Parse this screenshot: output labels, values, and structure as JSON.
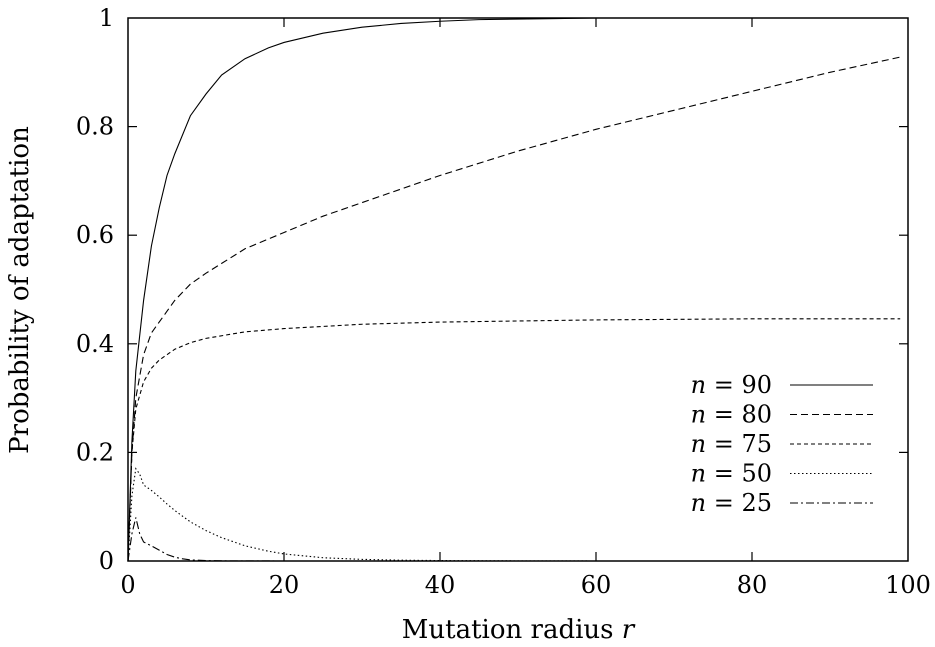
{
  "chart_data": {
    "type": "line",
    "xlabel": "Mutation radius r",
    "ylabel": "Probability of adaptation",
    "xlim": [
      0,
      100
    ],
    "ylim": [
      0,
      1
    ],
    "x_ticks": [
      "0",
      "20",
      "40",
      "60",
      "80",
      "100"
    ],
    "y_ticks": [
      "0",
      "0.2",
      "0.4",
      "0.6",
      "0.8",
      "1"
    ],
    "x_tick_values": [
      0,
      20,
      40,
      60,
      80,
      100
    ],
    "y_tick_values": [
      0,
      0.2,
      0.4,
      0.6,
      0.8,
      1
    ],
    "grid": false,
    "legend_position": "bottom-right",
    "series": [
      {
        "name": "n = 90",
        "dash": "solid",
        "x": [
          0,
          0.5,
          1,
          2,
          3,
          4,
          5,
          6,
          8,
          10,
          12,
          15,
          18,
          20,
          25,
          30,
          35,
          40,
          45,
          50,
          55,
          60,
          70,
          80,
          90,
          99
        ],
        "y": [
          0,
          0.22,
          0.35,
          0.48,
          0.58,
          0.65,
          0.71,
          0.75,
          0.82,
          0.86,
          0.895,
          0.925,
          0.945,
          0.955,
          0.972,
          0.983,
          0.99,
          0.994,
          0.997,
          0.998,
          0.999,
          1.0,
          1.0,
          1.0,
          1.0,
          1.0
        ]
      },
      {
        "name": "n = 80",
        "dash": "dashed",
        "x": [
          0,
          0.5,
          1,
          2,
          3,
          4,
          5,
          6,
          8,
          10,
          15,
          20,
          25,
          30,
          40,
          50,
          60,
          70,
          80,
          90,
          99
        ],
        "y": [
          0,
          0.2,
          0.3,
          0.38,
          0.42,
          0.44,
          0.46,
          0.48,
          0.51,
          0.53,
          0.575,
          0.605,
          0.635,
          0.66,
          0.71,
          0.755,
          0.795,
          0.83,
          0.865,
          0.9,
          0.928
        ]
      },
      {
        "name": "n = 75",
        "dash": "short-dashed",
        "x": [
          0,
          0.5,
          1,
          2,
          3,
          4,
          5,
          6,
          8,
          10,
          15,
          20,
          30,
          40,
          50,
          60,
          70,
          80,
          90,
          99
        ],
        "y": [
          0,
          0.2,
          0.28,
          0.33,
          0.355,
          0.37,
          0.38,
          0.39,
          0.402,
          0.41,
          0.422,
          0.428,
          0.436,
          0.44,
          0.442,
          0.444,
          0.445,
          0.446,
          0.446,
          0.446
        ]
      },
      {
        "name": "n = 50",
        "dash": "dotted",
        "x": [
          0,
          0.5,
          1,
          1.5,
          2,
          3,
          4,
          5,
          6,
          8,
          10,
          12,
          15,
          18,
          20,
          25,
          30,
          35,
          40,
          50,
          60,
          70,
          80,
          90,
          99
        ],
        "y": [
          0,
          0.12,
          0.17,
          0.16,
          0.14,
          0.13,
          0.118,
          0.105,
          0.093,
          0.072,
          0.056,
          0.043,
          0.028,
          0.018,
          0.013,
          0.006,
          0.003,
          0.0015,
          0.0008,
          0.0002,
          0.0,
          0.0,
          0.0,
          0.0,
          0.0
        ]
      },
      {
        "name": "n = 25",
        "dash": "dash-dot",
        "x": [
          0,
          0.5,
          1,
          1.5,
          2,
          3,
          4,
          5,
          6,
          7,
          8,
          10,
          12,
          15,
          20,
          40,
          99
        ],
        "y": [
          0,
          0.05,
          0.08,
          0.05,
          0.035,
          0.028,
          0.02,
          0.012,
          0.007,
          0.004,
          0.002,
          0.0008,
          0.0003,
          0.0001,
          0.0,
          0.0,
          0.0
        ]
      }
    ]
  }
}
